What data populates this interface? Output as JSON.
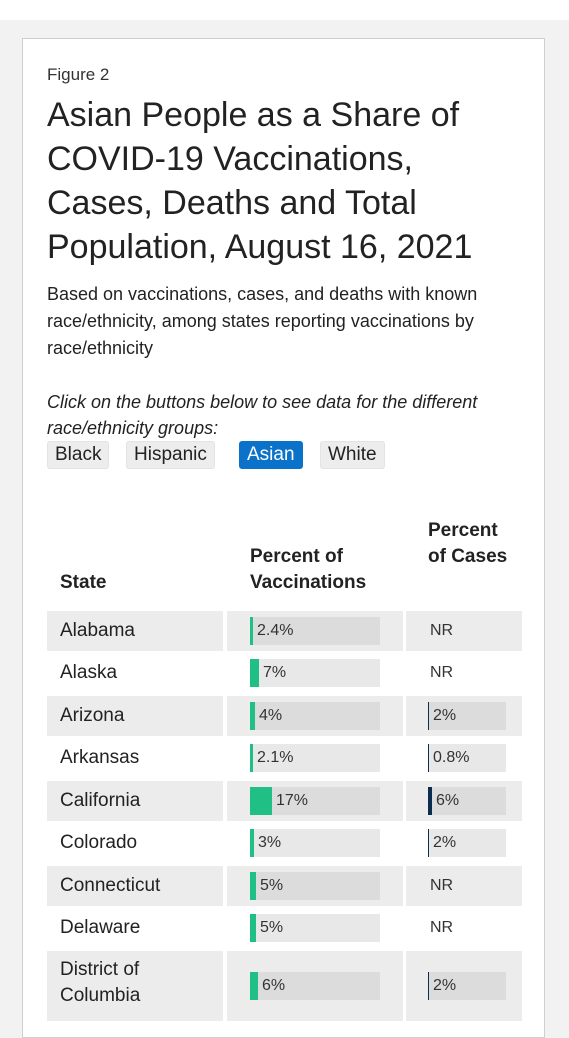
{
  "figure": {
    "label": "Figure 2"
  },
  "title": "Asian People as a Share of COVID-19 Vaccinations, Cases, Deaths and Total Population, August 16, 2021",
  "subtitle": "Based on vaccinations, cases, and deaths with known race/ethnicity, among states reporting vaccinations by race/ethnicity",
  "instructions": "Click on the buttons below to see data for the different race/ethnicity groups:",
  "buttons": [
    {
      "label": "Black",
      "active": false
    },
    {
      "label": "Hispanic",
      "active": false
    },
    {
      "label": "Asian",
      "active": true
    },
    {
      "label": "White",
      "active": false
    }
  ],
  "colors": {
    "active_button": "#0a72c9",
    "vaccination_bar": "#1fbf86",
    "cases_bar": "#0b2c4f"
  },
  "chart_data": {
    "type": "table",
    "columns": {
      "state": "State",
      "vaccinations": "Percent of Vaccinations",
      "cases": "Percent of Cases"
    },
    "scale_max": 17,
    "rows": [
      {
        "state": "Alabama",
        "vaccinations": 2.4,
        "vaccinations_label": "2.4%",
        "cases": null,
        "cases_label": "NR"
      },
      {
        "state": "Alaska",
        "vaccinations": 7,
        "vaccinations_label": "7%",
        "cases": null,
        "cases_label": "NR"
      },
      {
        "state": "Arizona",
        "vaccinations": 4,
        "vaccinations_label": "4%",
        "cases": 2,
        "cases_label": "2%"
      },
      {
        "state": "Arkansas",
        "vaccinations": 2.1,
        "vaccinations_label": "2.1%",
        "cases": 0.8,
        "cases_label": "0.8%"
      },
      {
        "state": "California",
        "vaccinations": 17,
        "vaccinations_label": "17%",
        "cases": 6,
        "cases_label": "6%"
      },
      {
        "state": "Colorado",
        "vaccinations": 3,
        "vaccinations_label": "3%",
        "cases": 2,
        "cases_label": "2%"
      },
      {
        "state": "Connecticut",
        "vaccinations": 5,
        "vaccinations_label": "5%",
        "cases": null,
        "cases_label": "NR"
      },
      {
        "state": "Delaware",
        "vaccinations": 5,
        "vaccinations_label": "5%",
        "cases": null,
        "cases_label": "NR"
      },
      {
        "state": "District of Columbia",
        "vaccinations": 6,
        "vaccinations_label": "6%",
        "cases": 2,
        "cases_label": "2%"
      }
    ]
  }
}
